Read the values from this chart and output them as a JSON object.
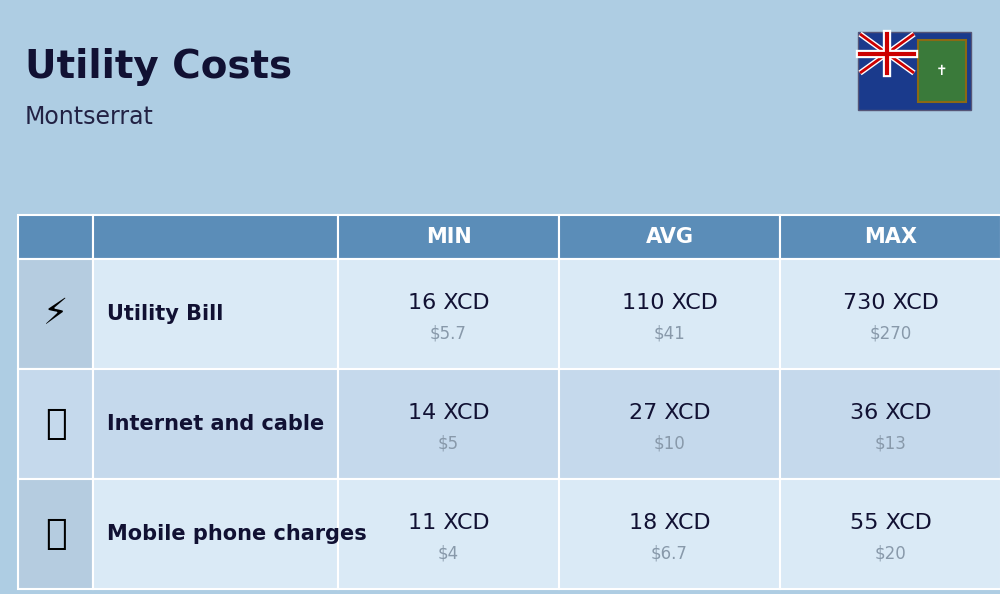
{
  "title": "Utility Costs",
  "subtitle": "Montserrat",
  "background_color": "#aecde3",
  "header_bg_color": "#5b8db8",
  "header_text_color": "#ffffff",
  "row_bg_even": "#daeaf6",
  "row_bg_odd": "#c5d9ec",
  "icon_bg_even": "#c5d9ec",
  "icon_bg_odd": "#b5cce0",
  "columns": [
    "MIN",
    "AVG",
    "MAX"
  ],
  "rows": [
    {
      "label": "Utility Bill",
      "icon": "utility",
      "min_xcd": "16 XCD",
      "min_usd": "$5.7",
      "avg_xcd": "110 XCD",
      "avg_usd": "$41",
      "max_xcd": "730 XCD",
      "max_usd": "$270"
    },
    {
      "label": "Internet and cable",
      "icon": "internet",
      "min_xcd": "14 XCD",
      "min_usd": "$5",
      "avg_xcd": "27 XCD",
      "avg_usd": "$10",
      "max_xcd": "36 XCD",
      "max_usd": "$13"
    },
    {
      "label": "Mobile phone charges",
      "icon": "mobile",
      "min_xcd": "11 XCD",
      "min_usd": "$4",
      "avg_xcd": "18 XCD",
      "avg_usd": "$6.7",
      "max_xcd": "55 XCD",
      "max_usd": "$20"
    }
  ],
  "xcd_fontsize": 16,
  "usd_fontsize": 12,
  "label_fontsize": 15,
  "header_fontsize": 15,
  "title_fontsize": 28,
  "subtitle_fontsize": 17,
  "title_color": "#111133",
  "subtitle_color": "#222244",
  "label_color": "#111133",
  "usd_color": "#8899aa",
  "xcd_color": "#111133"
}
